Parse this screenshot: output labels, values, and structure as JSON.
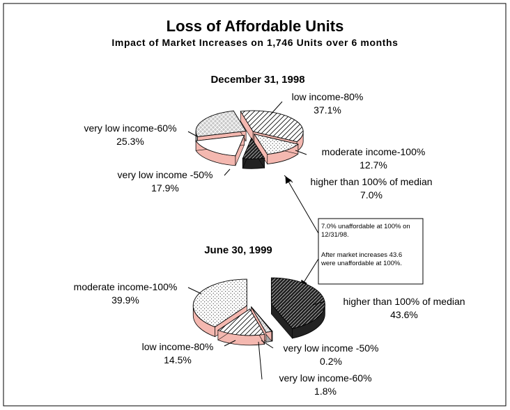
{
  "title": "Loss of Affordable Units",
  "subtitle": "Impact of Market Increases on 1,746 Units over 6 months",
  "annotation": {
    "lines": [
      "7.0% unaffordable at 100% on",
      "12/31/98.",
      "",
      "After market increases 43.6",
      "were unaffordable at 100%."
    ]
  },
  "chart_data": [
    {
      "type": "pie",
      "title": "December 31, 1998",
      "slices": [
        {
          "label": "low income-80%",
          "value_label": "37.1%",
          "value": 37.1,
          "pattern": "diag-right"
        },
        {
          "label": "moderate income-100%",
          "value_label": "12.7%",
          "value": 12.7,
          "pattern": "dots"
        },
        {
          "label": "higher than 100% of median",
          "value_label": "7.0%",
          "value": 7.0,
          "pattern": "dark"
        },
        {
          "label": "very low income -50%",
          "value_label": "17.9%",
          "value": 17.9,
          "pattern": "white"
        },
        {
          "label": "very low income-60%",
          "value_label": "25.3%",
          "value": 25.3,
          "pattern": "cross"
        }
      ]
    },
    {
      "type": "pie",
      "title": "June 30, 1999",
      "slices": [
        {
          "label": "higher than 100% of median",
          "value_label": "43.6%",
          "value": 43.6,
          "pattern": "dark"
        },
        {
          "label": "very low income -50%",
          "value_label": "0.2%",
          "value": 0.2,
          "pattern": "white"
        },
        {
          "label": "very low income-60%",
          "value_label": "1.8%",
          "value": 1.8,
          "pattern": "cross"
        },
        {
          "label": "low income-80%",
          "value_label": "14.5%",
          "value": 14.5,
          "pattern": "diag-right"
        },
        {
          "label": "moderate income-100%",
          "value_label": "39.9%",
          "value": 39.9,
          "pattern": "dots"
        }
      ]
    }
  ],
  "colors": {
    "side_fill": "#f4b8b0",
    "dark_fill": "#222222",
    "cross_fill": "#c8c8c8"
  }
}
